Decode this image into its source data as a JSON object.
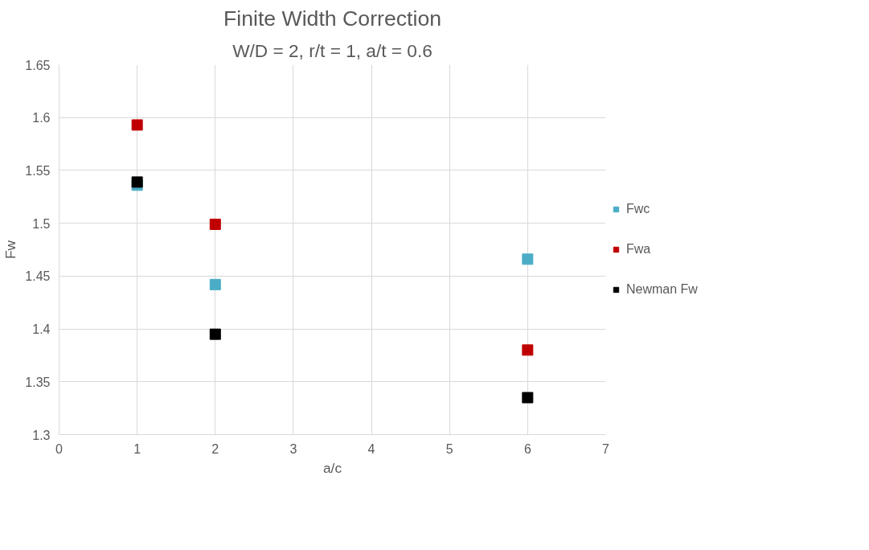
{
  "chart_data": {
    "type": "scatter",
    "title": "Finite Width Correction",
    "subtitle": "W/D = 2, r/t = 1, a/t = 0.6",
    "xlabel": "a/c",
    "ylabel": "Fw",
    "x": [
      1,
      2,
      6
    ],
    "series": [
      {
        "name": "Fwc",
        "color": "#4bacc6",
        "values": [
          1.536,
          1.442,
          1.466
        ]
      },
      {
        "name": "Fwa",
        "color": "#c00000",
        "values": [
          1.593,
          1.499,
          1.38
        ]
      },
      {
        "name": "Newman Fw",
        "color": "#000000",
        "values": [
          1.539,
          1.395,
          1.335
        ]
      }
    ],
    "xlim": [
      0,
      7
    ],
    "ylim": [
      1.3,
      1.65
    ],
    "xticks": [
      0,
      1,
      2,
      3,
      4,
      5,
      6,
      7
    ],
    "yticks": [
      1.3,
      1.35,
      1.4,
      1.45,
      1.5,
      1.55,
      1.6,
      1.65
    ],
    "grid": true,
    "legend": "right",
    "marker": "square"
  }
}
